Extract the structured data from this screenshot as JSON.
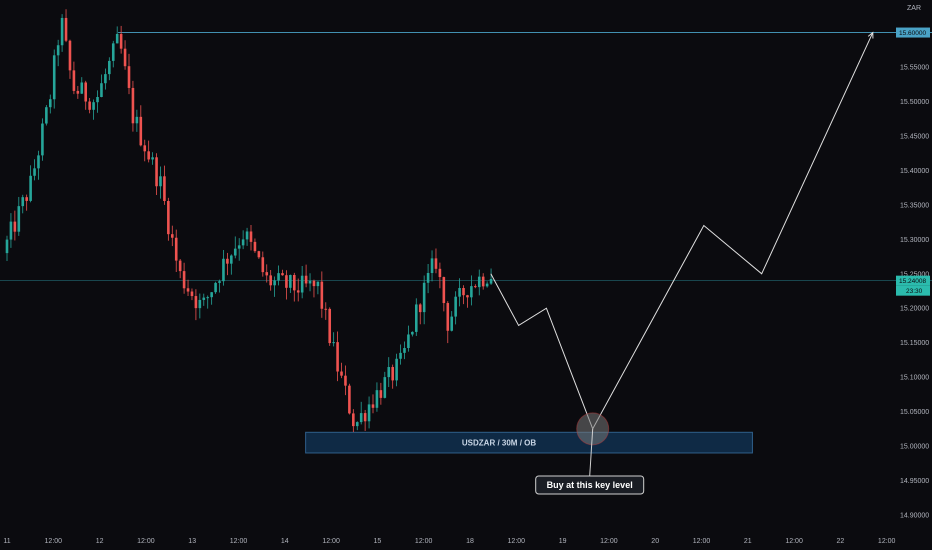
{
  "chart_data": {
    "type": "candlestick",
    "symbol_label": "USDZAR / 30M / OB",
    "currency": "ZAR",
    "y_axis": {
      "ylim": [
        14.9,
        15.65
      ],
      "ticks": [
        "15.55000",
        "15.50000",
        "15.45000",
        "15.40000",
        "15.35000",
        "15.30000",
        "15.25000",
        "15.20000",
        "15.15000",
        "15.10000",
        "15.05000",
        "15.00000",
        "14.95000",
        "14.90000"
      ],
      "tick_values": [
        15.55,
        15.5,
        15.45,
        15.4,
        15.35,
        15.3,
        15.25,
        15.2,
        15.15,
        15.1,
        15.05,
        15.0,
        14.95,
        14.9
      ]
    },
    "x_axis": {
      "ticks": [
        "11",
        "12:00",
        "12",
        "12:00",
        "13",
        "12:00",
        "14",
        "12:00",
        "15",
        "12:00",
        "18",
        "12:00",
        "19",
        "12:00",
        "20",
        "12:00",
        "21",
        "12:00",
        "22",
        "12:00"
      ],
      "tick_slots": [
        0,
        1,
        2,
        3,
        4,
        5,
        6,
        7,
        8,
        9,
        10,
        11,
        12,
        13,
        14,
        15,
        16,
        17,
        18,
        19
      ]
    },
    "resistance_level": {
      "value": 15.6,
      "label": "15.60000"
    },
    "current_price": {
      "value": 15.24,
      "label": "15.24008",
      "countdown": "23:30"
    },
    "order_block_zone": {
      "low": 14.99,
      "high": 15.02,
      "slot_start": 6.45,
      "slot_end": 16.1
    },
    "projection_path": [
      {
        "slot": 10.45,
        "price": 15.25
      },
      {
        "slot": 11.05,
        "price": 15.175
      },
      {
        "slot": 11.65,
        "price": 15.2
      },
      {
        "slot": 12.65,
        "price": 15.025
      },
      {
        "slot": 15.05,
        "price": 15.32
      },
      {
        "slot": 16.3,
        "price": 15.25
      },
      {
        "slot": 18.7,
        "price": 15.6
      }
    ],
    "candles": {
      "start_slot": 0,
      "end_slot": 10.5,
      "anchors": [
        {
          "slot": 0.0,
          "price": 15.28
        },
        {
          "slot": 0.6,
          "price": 15.38
        },
        {
          "slot": 1.0,
          "price": 15.5
        },
        {
          "slot": 1.25,
          "price": 15.62
        },
        {
          "slot": 1.5,
          "price": 15.52
        },
        {
          "slot": 2.0,
          "price": 15.5
        },
        {
          "slot": 2.5,
          "price": 15.59
        },
        {
          "slot": 2.8,
          "price": 15.48
        },
        {
          "slot": 3.4,
          "price": 15.38
        },
        {
          "slot": 3.8,
          "price": 15.25
        },
        {
          "slot": 4.3,
          "price": 15.2
        },
        {
          "slot": 4.8,
          "price": 15.27
        },
        {
          "slot": 5.2,
          "price": 15.31
        },
        {
          "slot": 5.7,
          "price": 15.24
        },
        {
          "slot": 6.3,
          "price": 15.23
        },
        {
          "slot": 6.8,
          "price": 15.23
        },
        {
          "slot": 7.2,
          "price": 15.12
        },
        {
          "slot": 7.6,
          "price": 15.03
        },
        {
          "slot": 8.0,
          "price": 15.07
        },
        {
          "slot": 8.6,
          "price": 15.12
        },
        {
          "slot": 9.0,
          "price": 15.21
        },
        {
          "slot": 9.35,
          "price": 15.27
        },
        {
          "slot": 9.6,
          "price": 15.18
        },
        {
          "slot": 10.0,
          "price": 15.23
        },
        {
          "slot": 10.45,
          "price": 15.25
        }
      ]
    },
    "marker_circle": {
      "slot": 12.65,
      "price": 15.025
    },
    "annotation": {
      "text": "Buy at this key level",
      "slot": 12.65,
      "price": 14.945
    },
    "colors": {
      "background": "#0b0b0f",
      "bull": "#26a69a",
      "bear": "#ef5350",
      "resistance_line": "#4aa3c7",
      "current_line": "#1e5a63",
      "current_tag": "#2bbbad",
      "zone_fill": "#0f2a45",
      "zone_border": "#2f5f8a",
      "projection": "#e0e0e0",
      "axis_text": "#b2b5be"
    }
  }
}
